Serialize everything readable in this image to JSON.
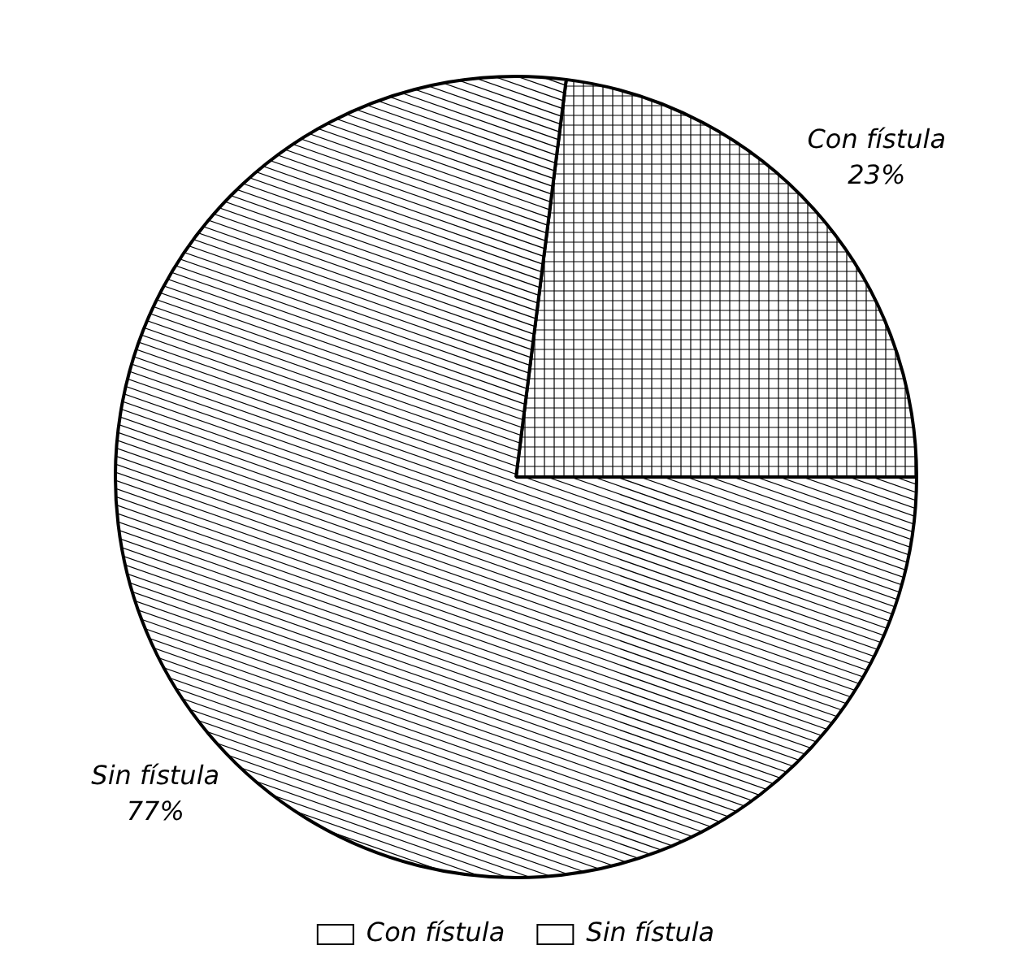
{
  "chart_data": {
    "type": "pie",
    "categories": [
      "Con fístula",
      "Sin fístula"
    ],
    "values": [
      23,
      77
    ],
    "colors": [
      "#ffffff",
      "#ffffff"
    ],
    "value_labels": [
      "23%",
      "77%"
    ],
    "legend": "bottom"
  }
}
